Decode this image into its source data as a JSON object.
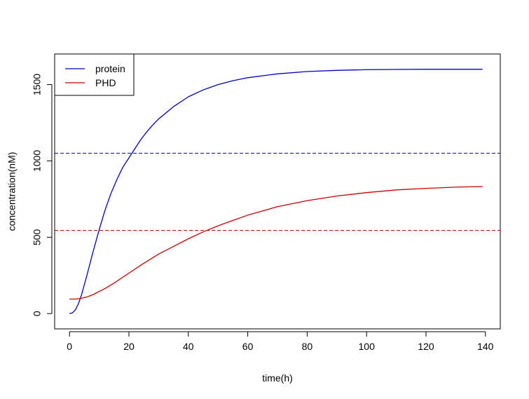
{
  "chart_data": {
    "type": "line",
    "xlabel": "time(h)",
    "ylabel": "concentration(nM)",
    "xlim": [
      -5,
      145
    ],
    "ylim": [
      -100,
      1700
    ],
    "x_ticks": [
      0,
      20,
      40,
      60,
      80,
      100,
      120,
      140
    ],
    "y_ticks": [
      0,
      500,
      1000,
      1500
    ],
    "x_tick_labels": [
      "0",
      "20",
      "40",
      "60",
      "80",
      "100",
      "120",
      "140"
    ],
    "y_tick_labels": [
      "0",
      "500",
      "1000",
      "1500"
    ],
    "grid": false,
    "legend_position": "top-left",
    "series": [
      {
        "name": "protein",
        "color": "#0000cc",
        "x": [
          0,
          1,
          2,
          3,
          4,
          5,
          6,
          8,
          10,
          12,
          14,
          16,
          18,
          20,
          22,
          24,
          26,
          28,
          30,
          35,
          40,
          45,
          50,
          55,
          60,
          70,
          80,
          90,
          100,
          110,
          120,
          130,
          139
        ],
        "y": [
          0,
          5,
          25,
          65,
          120,
          190,
          260,
          410,
          550,
          680,
          790,
          880,
          960,
          1020,
          1080,
          1140,
          1190,
          1235,
          1275,
          1355,
          1420,
          1465,
          1500,
          1525,
          1545,
          1570,
          1585,
          1593,
          1597,
          1599,
          1600,
          1600,
          1600
        ]
      },
      {
        "name": "PHD",
        "color": "#cc0000",
        "x": [
          0,
          2,
          4,
          6,
          8,
          10,
          12,
          15,
          20,
          25,
          30,
          35,
          40,
          45,
          50,
          55,
          60,
          70,
          80,
          90,
          100,
          110,
          120,
          130,
          139
        ],
        "y": [
          95,
          95,
          100,
          110,
          125,
          145,
          165,
          200,
          265,
          330,
          390,
          440,
          490,
          535,
          575,
          610,
          645,
          700,
          740,
          770,
          792,
          810,
          820,
          828,
          832
        ]
      }
    ],
    "hlines": [
      {
        "y": 1050,
        "color": "#0000cc",
        "style": "dashed"
      },
      {
        "y": 545,
        "color": "#cc0000",
        "style": "dashed"
      }
    ]
  }
}
